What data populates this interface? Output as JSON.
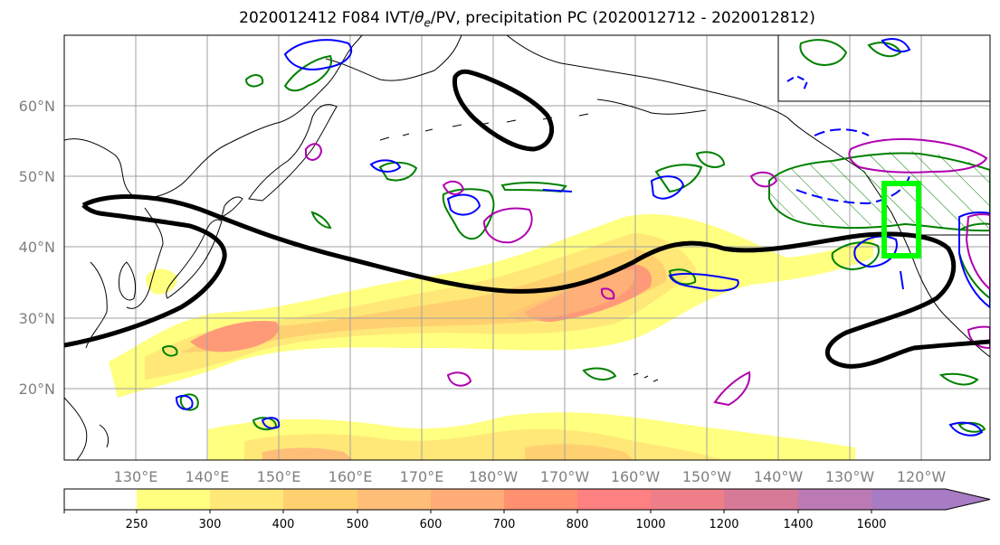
{
  "title": {
    "prefix": "2020012412 F084 IVT/",
    "theta": "θ",
    "theta_sub": "e",
    "suffix": "/PV, precipitation PC (2020012712 - 2020012812)"
  },
  "map": {
    "lat_labels": [
      "60°N",
      "50°N",
      "40°N",
      "30°N",
      "20°N"
    ],
    "lon_labels": [
      "130°E",
      "140°E",
      "150°E",
      "160°E",
      "170°E",
      "180°W",
      "170°W",
      "160°W",
      "150°W",
      "140°W",
      "130°W",
      "120°W"
    ],
    "lat_range": [
      10,
      70
    ],
    "lon_range": [
      120,
      250
    ]
  },
  "colorbar": {
    "ticks": [
      "250",
      "300",
      "400",
      "500",
      "600",
      "700",
      "800",
      "1000",
      "1200",
      "1400",
      "1600"
    ],
    "colors": [
      "#ffff80",
      "#ffe878",
      "#ffd070",
      "#ffbe78",
      "#ffac78",
      "#ff9070",
      "#ff8080",
      "#ee7f88",
      "#d77a98",
      "#bc7ab4",
      "#a77cc4"
    ]
  },
  "colors": {
    "jet_line": "#000000",
    "box": "#00ff00",
    "green_contour": "#008000",
    "blue_contour": "#0000ff",
    "magenta_contour": "#b000b0"
  }
}
